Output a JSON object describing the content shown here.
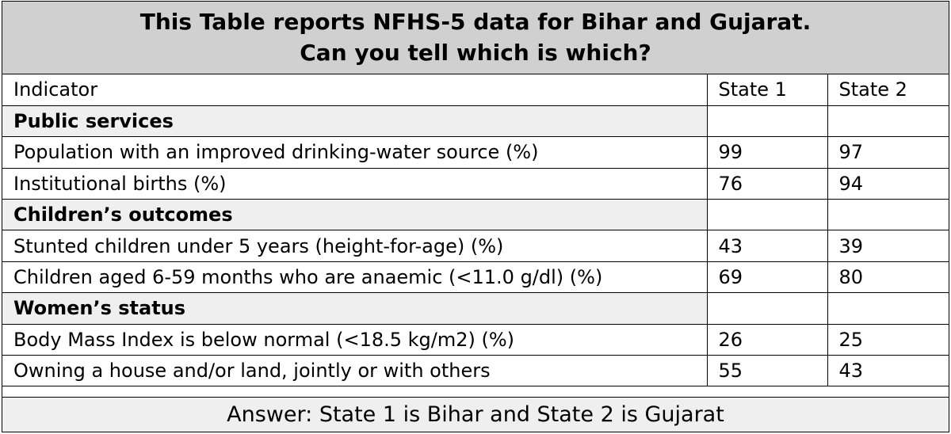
{
  "title": {
    "line1": "This Table reports NFHS-5 data for Bihar and Gujarat.",
    "line2": "Can you tell which is which?"
  },
  "table": {
    "headers": [
      "Indicator",
      "State 1",
      "State 2"
    ],
    "sections": [
      {
        "name": "Public services",
        "rows": [
          {
            "indicator": "Population with an improved drinking-water source (%)",
            "state1": "99",
            "state2": "97"
          },
          {
            "indicator": "Institutional births (%)",
            "state1": "76",
            "state2": "94"
          }
        ]
      },
      {
        "name": "Children’s outcomes",
        "rows": [
          {
            "indicator": "Stunted children under 5 years (height-for-age) (%)",
            "state1": "43",
            "state2": "39"
          },
          {
            "indicator": "Children aged 6-59 months who are anaemic (<11.0 g/dl) (%)",
            "state1": "69",
            "state2": "80"
          }
        ]
      },
      {
        "name": "Women’s status",
        "rows": [
          {
            "indicator": "Body Mass Index is below normal (<18.5 kg/m2) (%)",
            "state1": "26",
            "state2": "25"
          },
          {
            "indicator": "Owning a house and/or land, jointly or with others",
            "state1": "55",
            "state2": "43"
          }
        ]
      }
    ]
  },
  "footer": {
    "answer": "Answer: State 1 is Bihar and State 2 is Gujarat"
  }
}
